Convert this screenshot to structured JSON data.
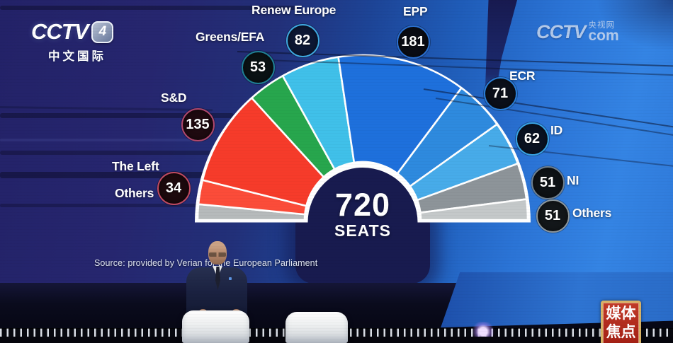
{
  "station": {
    "cctv4_logo": {
      "name": "CCTV",
      "channel": "4",
      "subtitle": "中文国际"
    },
    "cctv_com_watermark": {
      "name": "CCTV",
      "cn_label": "央视网",
      "domain": "com"
    },
    "corner_tag": {
      "line1": "媒体",
      "line2": "焦点",
      "bg_color": "#b5271d",
      "border_color": "#d8b266"
    }
  },
  "chart_data": {
    "type": "parliament-hemicycle",
    "total_seats": 720,
    "center_label": {
      "value": "720",
      "unit": "SEATS"
    },
    "source": "Source: provided by Verian for the European Parliament",
    "groups": [
      {
        "id": "greens",
        "label": "Greens/EFA",
        "seats": 53,
        "badge_ring": "#1f8096",
        "badge_fill": "#0a1214"
      },
      {
        "id": "renew",
        "label": "Renew Europe",
        "seats": 82,
        "badge_ring": "#3fa9e0",
        "badge_fill": "#0d1834"
      },
      {
        "id": "epp",
        "label": "EPP",
        "seats": 181,
        "badge_ring": "#2a6fd0",
        "badge_fill": "#0a0c14"
      },
      {
        "id": "sd",
        "label": "S&D",
        "seats": 135,
        "badge_ring": "#b0486e",
        "badge_fill": "#1f0a10"
      },
      {
        "id": "theleft",
        "label": "The Left",
        "seats": 34,
        "badge_ring": "#c24b62",
        "badge_fill": "#1d090d"
      },
      {
        "id": "others_left",
        "label": "Others",
        "seats": null,
        "badge_ring": null,
        "badge_fill": null
      },
      {
        "id": "ecr",
        "label": "ECR",
        "seats": 71,
        "badge_ring": "#2a7ed8",
        "badge_fill": "#0b0f1a"
      },
      {
        "id": "id",
        "label": "ID",
        "seats": 62,
        "badge_ring": "#38a2e4",
        "badge_fill": "#0a1222"
      },
      {
        "id": "ni",
        "label": "NI",
        "seats": 51,
        "badge_ring": "#6f8090",
        "badge_fill": "#0e1216"
      },
      {
        "id": "others",
        "label": "Others",
        "seats": 51,
        "badge_ring": "#8c979e",
        "badge_fill": "#13171a"
      }
    ],
    "arc_segments": [
      {
        "group": "others_left",
        "color": "#b6babb",
        "arc_seats": 22
      },
      {
        "group": "theleft",
        "color": "#fb4c39",
        "arc_seats": 34
      },
      {
        "group": "sd",
        "color": "#f63b2a",
        "arc_seats": 135
      },
      {
        "group": "greens",
        "color": "#27a64d",
        "arc_seats": 53
      },
      {
        "group": "renew",
        "color": "#40c0e9",
        "arc_seats": 82
      },
      {
        "group": "epp",
        "color": "#1e70dc",
        "arc_seats": 181
      },
      {
        "group": "ecr",
        "color": "#2e8ade",
        "arc_seats": 71
      },
      {
        "group": "id",
        "color": "#47abe9",
        "arc_seats": 62
      },
      {
        "group": "ni",
        "color": "#8d9499",
        "arc_seats": 51
      },
      {
        "group": "others",
        "color": "#c4c8c9",
        "arc_seats": 29
      }
    ]
  }
}
